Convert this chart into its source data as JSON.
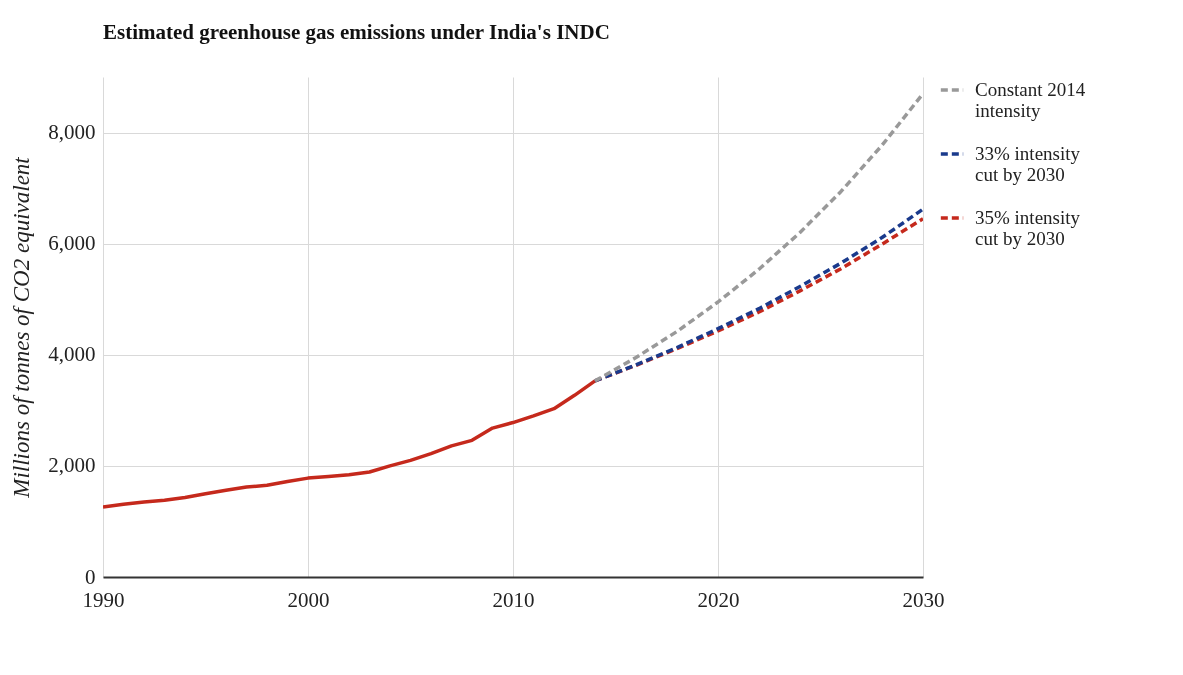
{
  "chart_data": {
    "type": "line",
    "title": "Estimated greenhouse gas emissions under India's INDC",
    "ylabel": "Millions of tonnes of CO2 equivalent",
    "xlim": [
      1990,
      2030
    ],
    "xticks": [
      1990,
      2000,
      2010,
      2020,
      2030
    ],
    "ylim": [
      0,
      9000
    ],
    "yticks": [
      0,
      {
        "value": 2000,
        "label": "2,000"
      },
      {
        "value": 4000,
        "label": "4,000"
      },
      {
        "value": 6000,
        "label": "6,000"
      },
      {
        "value": 8000,
        "label": "8,000"
      }
    ],
    "grid": true,
    "legend": "right",
    "series": [
      {
        "color": "#c5291c",
        "line_style": "solid",
        "x": [
          1990,
          1991,
          1992,
          1993,
          1994,
          1995,
          1996,
          1997,
          1998,
          1999,
          2000,
          2001,
          2002,
          2003,
          2004,
          2005,
          2006,
          2007,
          2008,
          2009,
          2010,
          2011,
          2012,
          2013,
          2014
        ],
        "values": [
          1260,
          1310,
          1350,
          1380,
          1430,
          1500,
          1560,
          1620,
          1650,
          1720,
          1780,
          1810,
          1840,
          1890,
          2000,
          2100,
          2220,
          2360,
          2460,
          2680,
          2780,
          2900,
          3030,
          3270,
          3530
        ]
      },
      {
        "name": "Constant 2014 intensity",
        "color": "#999999",
        "line_style": "dashed",
        "x": [
          2014,
          2016,
          2018,
          2020,
          2022,
          2024,
          2026,
          2028,
          2030
        ],
        "values": [
          3530,
          3950,
          4420,
          4950,
          5540,
          6200,
          6940,
          7770,
          8700
        ]
      },
      {
        "name": "33% intensity cut by 2030",
        "color": "#1a3a8c",
        "line_style": "dashed",
        "x": [
          2014,
          2016,
          2018,
          2020,
          2022,
          2024,
          2026,
          2028,
          2030
        ],
        "values": [
          3530,
          3820,
          4130,
          4470,
          4830,
          5230,
          5650,
          6110,
          6620
        ]
      },
      {
        "name": "35% intensity cut by 2030",
        "color": "#c5291c",
        "line_style": "dashed",
        "x": [
          2014,
          2016,
          2018,
          2020,
          2022,
          2024,
          2026,
          2028,
          2030
        ],
        "values": [
          3530,
          3810,
          4110,
          4430,
          4770,
          5150,
          5550,
          5990,
          6450
        ]
      }
    ]
  }
}
